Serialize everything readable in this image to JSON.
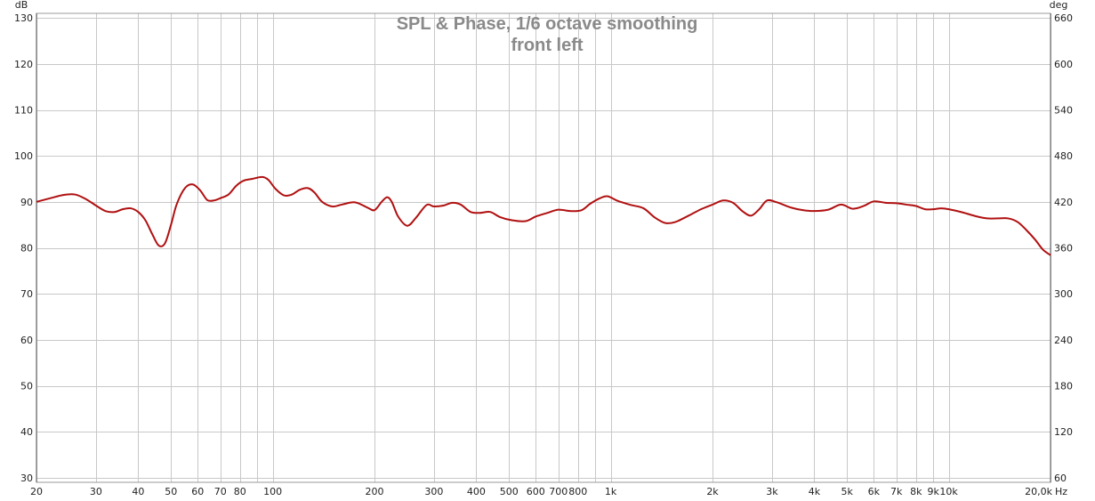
{
  "chart_data": {
    "type": "line",
    "title": "SPL & Phase, 1/6 octave smoothing",
    "subtitle": "front left",
    "y_unit_left": "dB",
    "y_unit_right": "deg",
    "x_unit": "Hz",
    "x_scale": "log",
    "xlim": [
      20,
      20000
    ],
    "ylim": [
      29,
      131
    ],
    "y2lim": [
      54,
      666
    ],
    "grid": true,
    "x_ticks": [
      {
        "value": 20,
        "label": "20"
      },
      {
        "value": 30,
        "label": "30"
      },
      {
        "value": 40,
        "label": "40"
      },
      {
        "value": 50,
        "label": "50"
      },
      {
        "value": 60,
        "label": "60"
      },
      {
        "value": 70,
        "label": "70"
      },
      {
        "value": 80,
        "label": "80"
      },
      {
        "value": 100,
        "label": "100"
      },
      {
        "value": 200,
        "label": "200"
      },
      {
        "value": 300,
        "label": "300"
      },
      {
        "value": 400,
        "label": "400"
      },
      {
        "value": 500,
        "label": "500"
      },
      {
        "value": 600,
        "label": "600"
      },
      {
        "value": 700,
        "label": "700"
      },
      {
        "value": 800,
        "label": "800"
      },
      {
        "value": 1000,
        "label": "1k"
      },
      {
        "value": 2000,
        "label": "2k"
      },
      {
        "value": 3000,
        "label": "3k"
      },
      {
        "value": 4000,
        "label": "4k"
      },
      {
        "value": 5000,
        "label": "5k"
      },
      {
        "value": 6000,
        "label": "6k"
      },
      {
        "value": 7000,
        "label": "7k"
      },
      {
        "value": 8000,
        "label": "8k"
      },
      {
        "value": 9000,
        "label": "9k"
      },
      {
        "value": 10000,
        "label": "10k"
      },
      {
        "value": 20000,
        "label": "20,0k"
      }
    ],
    "x_minor_grid": [
      90,
      900
    ],
    "y_ticks_left": [
      30,
      40,
      50,
      60,
      70,
      80,
      90,
      100,
      110,
      120,
      130
    ],
    "y_ticks_right": [
      60,
      120,
      180,
      240,
      300,
      360,
      420,
      480,
      540,
      600,
      660
    ],
    "series": [
      {
        "color": "#b01010",
        "points": [
          [
            20,
            90.0
          ],
          [
            22,
            90.8
          ],
          [
            24,
            91.5
          ],
          [
            26,
            91.6
          ],
          [
            28,
            90.6
          ],
          [
            30,
            89.2
          ],
          [
            32,
            88.0
          ],
          [
            34,
            87.8
          ],
          [
            36,
            88.4
          ],
          [
            38,
            88.6
          ],
          [
            40,
            87.8
          ],
          [
            42,
            86.0
          ],
          [
            44,
            83.0
          ],
          [
            46,
            80.5
          ],
          [
            48,
            81.0
          ],
          [
            50,
            85.0
          ],
          [
            52,
            89.5
          ],
          [
            55,
            93.0
          ],
          [
            58,
            93.8
          ],
          [
            61,
            92.5
          ],
          [
            64,
            90.4
          ],
          [
            67,
            90.3
          ],
          [
            70,
            90.8
          ],
          [
            74,
            91.6
          ],
          [
            78,
            93.5
          ],
          [
            82,
            94.6
          ],
          [
            87,
            95.0
          ],
          [
            93,
            95.4
          ],
          [
            97,
            94.8
          ],
          [
            102,
            92.8
          ],
          [
            108,
            91.4
          ],
          [
            114,
            91.6
          ],
          [
            120,
            92.6
          ],
          [
            127,
            93.0
          ],
          [
            133,
            92.0
          ],
          [
            140,
            90.0
          ],
          [
            150,
            89.0
          ],
          [
            160,
            89.4
          ],
          [
            175,
            89.9
          ],
          [
            190,
            88.8
          ],
          [
            200,
            88.2
          ],
          [
            210,
            90.0
          ],
          [
            218,
            91.0
          ],
          [
            225,
            90.0
          ],
          [
            235,
            86.8
          ],
          [
            250,
            84.8
          ],
          [
            265,
            86.5
          ],
          [
            285,
            89.3
          ],
          [
            300,
            89.0
          ],
          [
            320,
            89.2
          ],
          [
            340,
            89.8
          ],
          [
            360,
            89.4
          ],
          [
            385,
            87.8
          ],
          [
            410,
            87.6
          ],
          [
            440,
            87.8
          ],
          [
            470,
            86.7
          ],
          [
            510,
            86.0
          ],
          [
            560,
            85.8
          ],
          [
            600,
            86.8
          ],
          [
            650,
            87.6
          ],
          [
            700,
            88.3
          ],
          [
            760,
            88.0
          ],
          [
            820,
            88.2
          ],
          [
            870,
            89.6
          ],
          [
            930,
            90.8
          ],
          [
            980,
            91.2
          ],
          [
            1050,
            90.2
          ],
          [
            1150,
            89.3
          ],
          [
            1250,
            88.6
          ],
          [
            1350,
            86.6
          ],
          [
            1450,
            85.4
          ],
          [
            1550,
            85.6
          ],
          [
            1700,
            87.0
          ],
          [
            1850,
            88.4
          ],
          [
            2000,
            89.4
          ],
          [
            2150,
            90.3
          ],
          [
            2300,
            89.8
          ],
          [
            2450,
            88.0
          ],
          [
            2600,
            87.0
          ],
          [
            2750,
            88.4
          ],
          [
            2900,
            90.3
          ],
          [
            3100,
            89.9
          ],
          [
            3400,
            88.8
          ],
          [
            3700,
            88.2
          ],
          [
            4000,
            88.0
          ],
          [
            4400,
            88.3
          ],
          [
            4800,
            89.4
          ],
          [
            5200,
            88.5
          ],
          [
            5600,
            89.1
          ],
          [
            6000,
            90.1
          ],
          [
            6500,
            89.8
          ],
          [
            7000,
            89.7
          ],
          [
            7500,
            89.4
          ],
          [
            8000,
            89.1
          ],
          [
            8500,
            88.4
          ],
          [
            9000,
            88.4
          ],
          [
            9500,
            88.6
          ],
          [
            10000,
            88.4
          ],
          [
            11000,
            87.7
          ],
          [
            12000,
            86.9
          ],
          [
            13000,
            86.4
          ],
          [
            14000,
            86.4
          ],
          [
            15000,
            86.4
          ],
          [
            16000,
            85.6
          ],
          [
            17000,
            83.8
          ],
          [
            18000,
            81.8
          ],
          [
            19000,
            79.6
          ],
          [
            20000,
            78.4
          ]
        ]
      }
    ]
  }
}
